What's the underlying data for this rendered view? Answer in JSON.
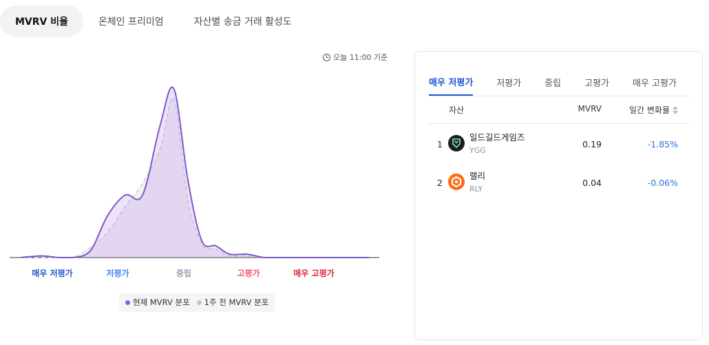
{
  "tabs": [
    "MVRV 비율",
    "온체인 프리미엄",
    "자산별 송금 거래 활성도"
  ],
  "timestamp": "오늘 11:00 기준",
  "chart_data": {
    "type": "area",
    "categories": [
      "매우 저평가",
      "저평가",
      "중립",
      "고평가",
      "매우 고평가"
    ],
    "category_colors": [
      "#2a55c9",
      "#3f86f2",
      "#9aa0a6",
      "#f0586e",
      "#d9263e"
    ],
    "series": [
      {
        "name": "현재 MVRV 분포",
        "color": "#9b55e6",
        "line_color": "#7b58c8",
        "x": [
          0,
          6,
          11,
          15,
          20,
          25,
          30,
          35,
          40,
          44,
          48,
          52,
          56,
          60,
          65,
          70,
          75,
          80,
          84,
          88,
          92,
          96,
          100
        ],
        "values": [
          0,
          1,
          0,
          0,
          4,
          25,
          37,
          37,
          78,
          100,
          46,
          10,
          7,
          2,
          2,
          0,
          0,
          0,
          0,
          0,
          0,
          0,
          0
        ]
      },
      {
        "name": "1주 전 MVRV 분포",
        "color": "#c8c8cc",
        "line_color": "#d2d2d6",
        "x": [
          0,
          6,
          11,
          15,
          20,
          25,
          30,
          35,
          40,
          44,
          48,
          52,
          56,
          60,
          65,
          70,
          75,
          80,
          84,
          88,
          92,
          96,
          100
        ],
        "values": [
          0,
          0,
          0,
          0,
          6,
          15,
          30,
          44,
          64,
          94,
          34,
          8,
          5,
          1,
          1,
          0,
          0,
          0,
          0,
          0,
          0,
          0,
          0
        ]
      }
    ]
  },
  "legend": [
    {
      "label": "현재 MVRV 분포",
      "color": "#9b55e6"
    },
    {
      "label": "1주 전 MVRV 분포",
      "color": "#c4c4c8"
    }
  ],
  "panel": {
    "tabs": [
      "매우 저평가",
      "저평가",
      "중립",
      "고평가",
      "매우 고평가"
    ],
    "columns": {
      "asset": "자산",
      "mvrv": "MVRV",
      "change": "일간 변화율"
    },
    "rows": [
      {
        "rank": "1",
        "name": "일드길드게임즈",
        "symbol": "YGG",
        "icon": "ygg-coin-icon",
        "mvrv": "0.19",
        "change": "-1.85%"
      },
      {
        "rank": "2",
        "name": "랠리",
        "symbol": "RLY",
        "icon": "rly-coin-icon",
        "mvrv": "0.04",
        "change": "-0.06%"
      }
    ]
  }
}
